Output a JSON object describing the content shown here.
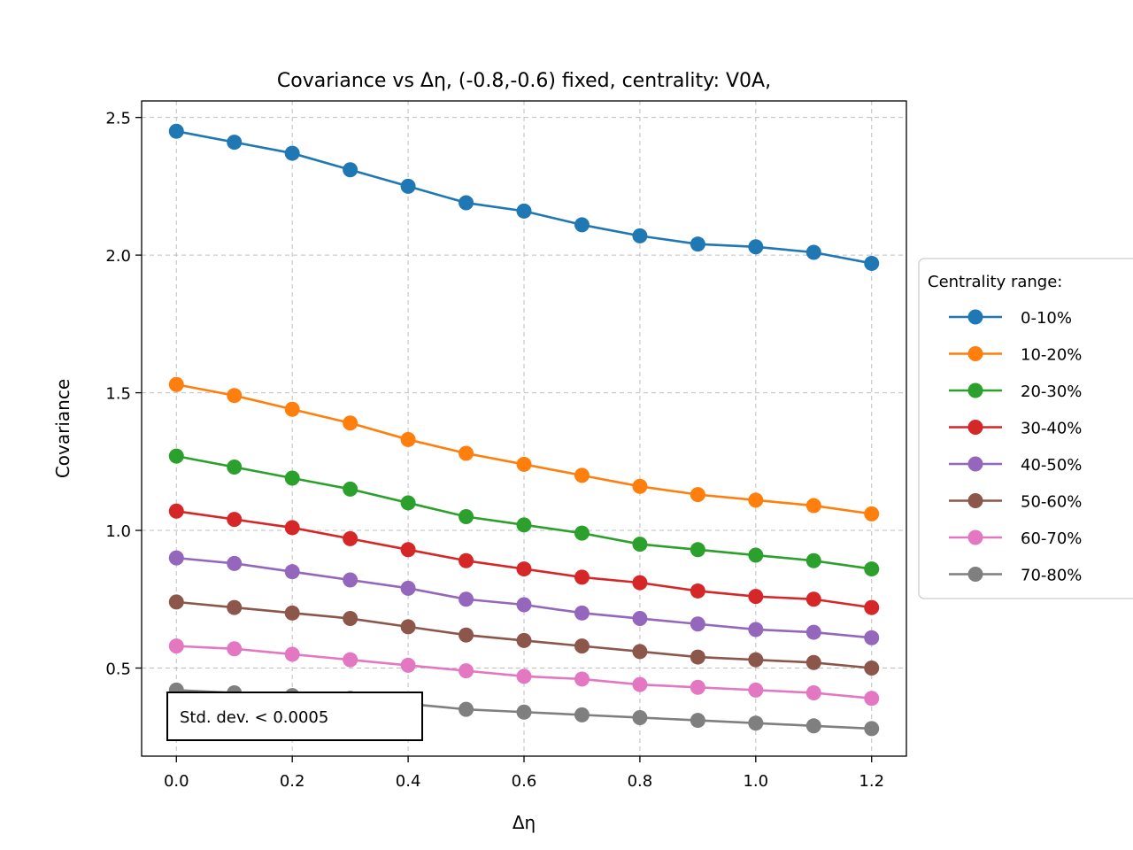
{
  "chart_data": {
    "type": "line",
    "title": "Covariance vs Δη, (-0.8,-0.6) fixed, centrality: V0A,",
    "xlabel": "Δη",
    "ylabel": "Covariance",
    "xlim": [
      -0.06,
      1.26
    ],
    "ylim": [
      0.18,
      2.56
    ],
    "xticks": [
      "0.0",
      "0.2",
      "0.4",
      "0.6",
      "0.8",
      "1.0",
      "1.2"
    ],
    "yticks": [
      "0.5",
      "1.0",
      "1.5",
      "2.0",
      "2.5"
    ],
    "grid": true,
    "legend_title": "Centrality range:",
    "legend_position": "right",
    "annotation": "Std. dev. < 0.0005",
    "x": [
      0.0,
      0.1,
      0.2,
      0.3,
      0.4,
      0.5,
      0.6,
      0.7,
      0.8,
      0.9,
      1.0,
      1.1,
      1.2
    ],
    "series": [
      {
        "name": "0-10%",
        "color": "#1f77b4",
        "values": [
          2.45,
          2.41,
          2.37,
          2.31,
          2.25,
          2.19,
          2.16,
          2.11,
          2.07,
          2.04,
          2.03,
          2.01,
          1.97
        ]
      },
      {
        "name": "10-20%",
        "color": "#ff7f0e",
        "values": [
          1.53,
          1.49,
          1.44,
          1.39,
          1.33,
          1.28,
          1.24,
          1.2,
          1.16,
          1.13,
          1.11,
          1.09,
          1.06
        ]
      },
      {
        "name": "20-30%",
        "color": "#2ca02c",
        "values": [
          1.27,
          1.23,
          1.19,
          1.15,
          1.1,
          1.05,
          1.02,
          0.99,
          0.95,
          0.93,
          0.91,
          0.89,
          0.86
        ]
      },
      {
        "name": "30-40%",
        "color": "#d62728",
        "values": [
          1.07,
          1.04,
          1.01,
          0.97,
          0.93,
          0.89,
          0.86,
          0.83,
          0.81,
          0.78,
          0.76,
          0.75,
          0.72
        ]
      },
      {
        "name": "40-50%",
        "color": "#9467bd",
        "values": [
          0.9,
          0.88,
          0.85,
          0.82,
          0.79,
          0.75,
          0.73,
          0.7,
          0.68,
          0.66,
          0.64,
          0.63,
          0.61
        ]
      },
      {
        "name": "50-60%",
        "color": "#8c564b",
        "values": [
          0.74,
          0.72,
          0.7,
          0.68,
          0.65,
          0.62,
          0.6,
          0.58,
          0.56,
          0.54,
          0.53,
          0.52,
          0.5
        ]
      },
      {
        "name": "60-70%",
        "color": "#e377c2",
        "values": [
          0.58,
          0.57,
          0.55,
          0.53,
          0.51,
          0.49,
          0.47,
          0.46,
          0.44,
          0.43,
          0.42,
          0.41,
          0.39
        ]
      },
      {
        "name": "70-80%",
        "color": "#7f7f7f",
        "values": [
          0.42,
          0.41,
          0.4,
          0.39,
          0.37,
          0.35,
          0.34,
          0.33,
          0.32,
          0.31,
          0.3,
          0.29,
          0.28
        ]
      }
    ]
  }
}
